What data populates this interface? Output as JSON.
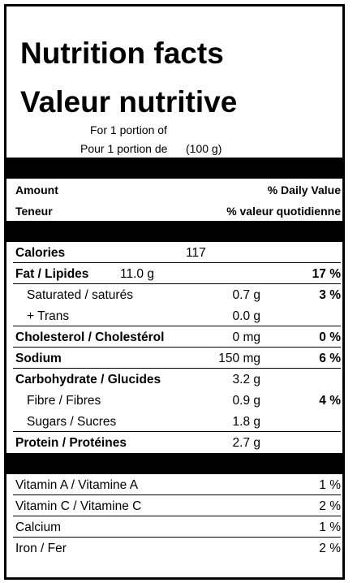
{
  "title_en": "Nutrition facts",
  "title_fr": "Valeur nutritive",
  "portion": {
    "line1": "For 1 portion of",
    "line2": "Pour 1 portion de",
    "amount": "(100 g)"
  },
  "headers": {
    "amount_en": "Amount",
    "amount_fr": "Teneur",
    "dv_en": "% Daily Value",
    "dv_fr": "% valeur quotidienne"
  },
  "calories": {
    "label": "Calories",
    "value": "117"
  },
  "fat": {
    "label": "Fat / Lipides",
    "value": "11.0 g",
    "dv": "17 %"
  },
  "saturated": {
    "label": "Saturated / saturés",
    "value": "0.7 g",
    "dv": "3 %"
  },
  "trans": {
    "label": "+ Trans",
    "value": "0.0 g"
  },
  "cholesterol": {
    "label": "Cholesterol / Cholestérol",
    "value": "0 mg",
    "dv": "0 %"
  },
  "sodium": {
    "label": "Sodium",
    "value": "150 mg",
    "dv": "6 %"
  },
  "carbohydrate": {
    "label": "Carbohydrate / Glucides",
    "value": "3.2 g"
  },
  "fibre": {
    "label": "Fibre / Fibres",
    "value": "0.9 g",
    "dv": "4 %"
  },
  "sugars": {
    "label": "Sugars / Sucres",
    "value": "1.8 g"
  },
  "protein": {
    "label": "Protein / Protéines",
    "value": "2.7 g"
  },
  "vitamins": [
    {
      "label": "Vitamin A / Vitamine A",
      "dv": "1 %"
    },
    {
      "label": "Vitamin C / Vitamine C",
      "dv": "2 %"
    },
    {
      "label": "Calcium",
      "dv": "1 %"
    },
    {
      "label": "Iron / Fer",
      "dv": "2 %"
    }
  ]
}
